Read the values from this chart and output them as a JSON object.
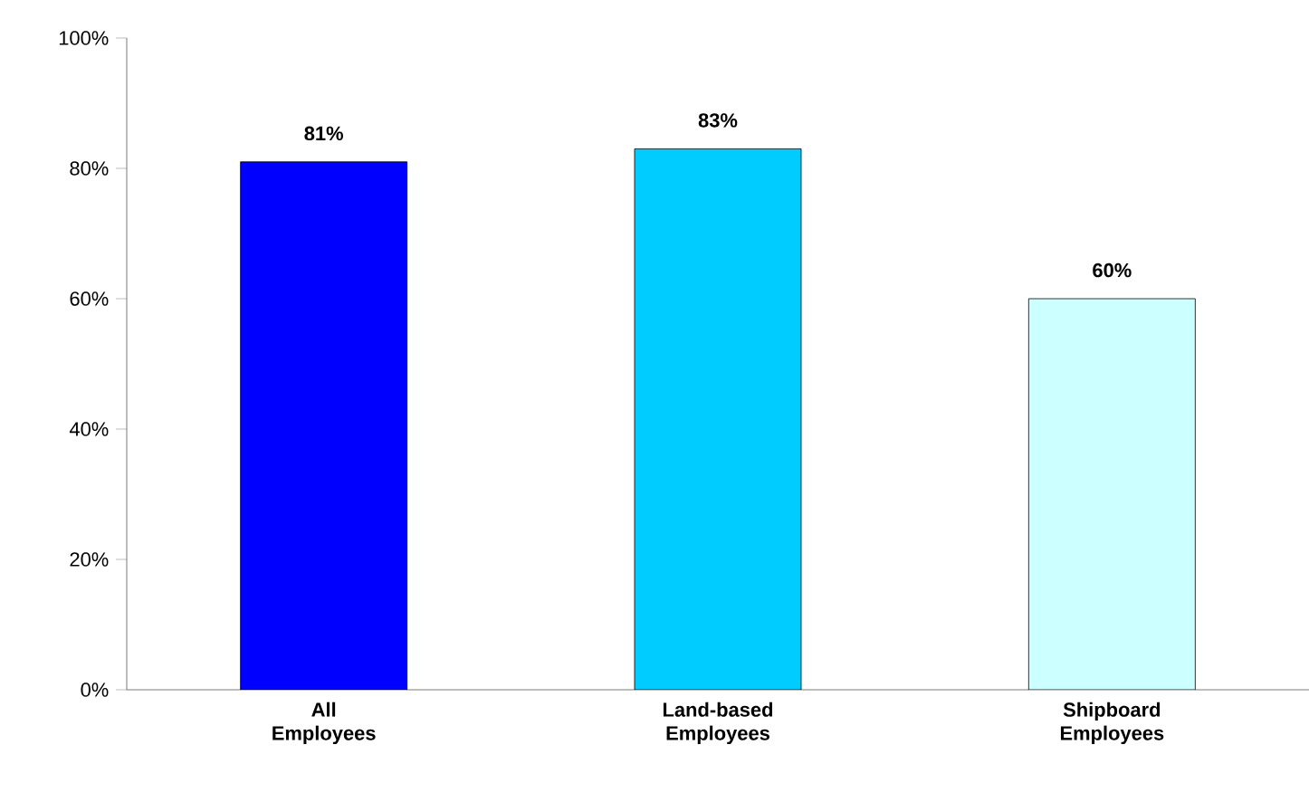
{
  "chart_data": {
    "type": "bar",
    "categories": [
      "All Employees",
      "Land-based Employees",
      "Shipboard Employees"
    ],
    "values": [
      81,
      83,
      60
    ],
    "colors": [
      "#0000ff",
      "#00ccff",
      "#ccffff"
    ],
    "value_labels": [
      "81%",
      "83%",
      "60%"
    ],
    "ylim": [
      0,
      100
    ],
    "yticks": [
      {
        "value": 0,
        "label": "0%"
      },
      {
        "value": 20,
        "label": "20%"
      },
      {
        "value": 40,
        "label": "40%"
      },
      {
        "value": 60,
        "label": "60%"
      },
      {
        "value": 80,
        "label": "80%"
      },
      {
        "value": 100,
        "label": "100%"
      }
    ],
    "grid": false
  }
}
